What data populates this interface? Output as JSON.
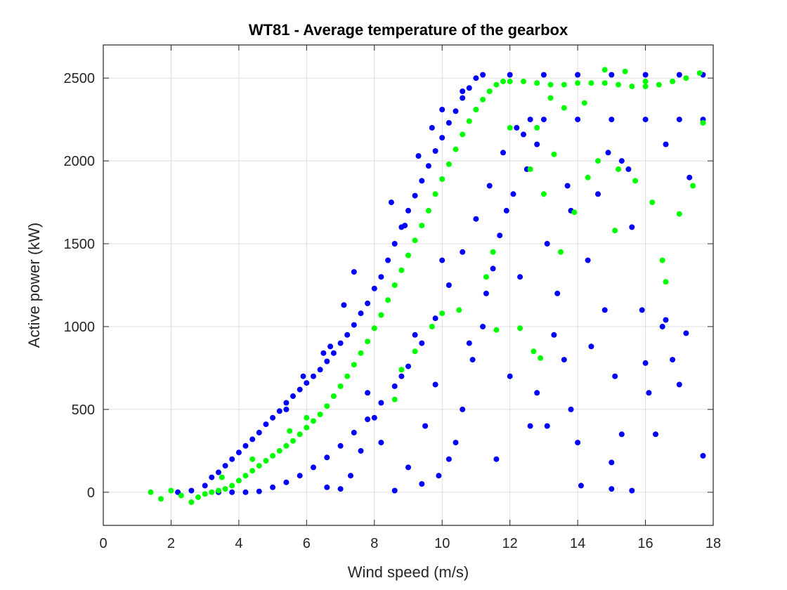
{
  "chart_data": {
    "type": "scatter",
    "title": "WT81 - Average temperature of the gearbox",
    "xlabel": "Wind speed (m/s)",
    "ylabel": "Active power (kW)",
    "xlim": [
      0,
      18
    ],
    "ylim": [
      -200,
      2700
    ],
    "xticks": [
      0,
      2,
      4,
      6,
      8,
      10,
      12,
      14,
      16,
      18
    ],
    "yticks": [
      0,
      500,
      1000,
      1500,
      2000,
      2500
    ],
    "xtick_labels": [
      "0",
      "2",
      "4",
      "6",
      "8",
      "10",
      "12",
      "14",
      "16",
      "18"
    ],
    "ytick_labels": [
      "0",
      "500",
      "1000",
      "1500",
      "2000",
      "2500"
    ],
    "grid": true,
    "series": [
      {
        "color": "#0000ff",
        "points": [
          [
            2.2,
            0
          ],
          [
            2.6,
            10
          ],
          [
            3.0,
            40
          ],
          [
            3.2,
            90
          ],
          [
            3.4,
            120
          ],
          [
            3.6,
            160
          ],
          [
            3.8,
            200
          ],
          [
            4.0,
            240
          ],
          [
            4.2,
            280
          ],
          [
            4.4,
            320
          ],
          [
            4.6,
            360
          ],
          [
            4.8,
            410
          ],
          [
            5.0,
            450
          ],
          [
            5.2,
            490
          ],
          [
            5.4,
            540
          ],
          [
            5.6,
            580
          ],
          [
            5.8,
            620
          ],
          [
            6.0,
            660
          ],
          [
            6.2,
            700
          ],
          [
            6.4,
            740
          ],
          [
            6.6,
            790
          ],
          [
            6.8,
            840
          ],
          [
            7.0,
            900
          ],
          [
            7.2,
            950
          ],
          [
            7.4,
            1010
          ],
          [
            7.6,
            1080
          ],
          [
            7.8,
            1140
          ],
          [
            8.0,
            1230
          ],
          [
            8.2,
            1300
          ],
          [
            8.4,
            1400
          ],
          [
            8.6,
            1500
          ],
          [
            8.8,
            1600
          ],
          [
            9.0,
            1700
          ],
          [
            9.2,
            1790
          ],
          [
            9.4,
            1880
          ],
          [
            9.6,
            1970
          ],
          [
            9.8,
            2060
          ],
          [
            10.0,
            2140
          ],
          [
            10.2,
            2230
          ],
          [
            10.4,
            2300
          ],
          [
            10.6,
            2380
          ],
          [
            10.8,
            2440
          ],
          [
            11.0,
            2500
          ],
          [
            11.2,
            2520
          ],
          [
            3.4,
            0
          ],
          [
            3.8,
            0
          ],
          [
            4.2,
            0
          ],
          [
            4.6,
            5
          ],
          [
            5.0,
            30
          ],
          [
            5.4,
            60
          ],
          [
            5.8,
            100
          ],
          [
            6.2,
            150
          ],
          [
            6.6,
            210
          ],
          [
            7.0,
            280
          ],
          [
            7.4,
            360
          ],
          [
            7.8,
            440
          ],
          [
            8.2,
            540
          ],
          [
            8.6,
            640
          ],
          [
            9.0,
            760
          ],
          [
            9.4,
            900
          ],
          [
            9.8,
            1050
          ],
          [
            10.2,
            1250
          ],
          [
            10.6,
            1450
          ],
          [
            11.0,
            1650
          ],
          [
            11.4,
            1850
          ],
          [
            11.8,
            2050
          ],
          [
            12.2,
            2200
          ],
          [
            12.6,
            2250
          ],
          [
            13.0,
            2250
          ],
          [
            14.0,
            2250
          ],
          [
            15.0,
            2250
          ],
          [
            16.0,
            2250
          ],
          [
            17.0,
            2250
          ],
          [
            17.7,
            2250
          ],
          [
            12.0,
            2520
          ],
          [
            13.0,
            2520
          ],
          [
            14.0,
            2520
          ],
          [
            15.0,
            2520
          ],
          [
            16.0,
            2520
          ],
          [
            17.0,
            2520
          ],
          [
            17.7,
            2520
          ],
          [
            8.5,
            1750
          ],
          [
            9.3,
            2030
          ],
          [
            9.7,
            2200
          ],
          [
            10.0,
            2310
          ],
          [
            7.4,
            1330
          ],
          [
            7.1,
            1130
          ],
          [
            6.7,
            880
          ],
          [
            5.4,
            500
          ],
          [
            5.9,
            700
          ],
          [
            6.5,
            840
          ],
          [
            8.9,
            1610
          ],
          [
            10.6,
            2420
          ],
          [
            9.8,
            650
          ],
          [
            9.5,
            400
          ],
          [
            10.2,
            200
          ],
          [
            10.6,
            500
          ],
          [
            10.9,
            800
          ],
          [
            11.2,
            1000
          ],
          [
            11.5,
            1350
          ],
          [
            11.7,
            1550
          ],
          [
            12.1,
            1800
          ],
          [
            12.5,
            1950
          ],
          [
            12.8,
            2100
          ],
          [
            13.1,
            1500
          ],
          [
            13.4,
            1200
          ],
          [
            13.6,
            800
          ],
          [
            13.8,
            500
          ],
          [
            14.0,
            300
          ],
          [
            14.3,
            1400
          ],
          [
            14.6,
            1800
          ],
          [
            14.8,
            1100
          ],
          [
            15.1,
            700
          ],
          [
            15.3,
            350
          ],
          [
            15.6,
            1600
          ],
          [
            15.9,
            1100
          ],
          [
            16.1,
            600
          ],
          [
            16.3,
            350
          ],
          [
            16.5,
            1000
          ],
          [
            16.8,
            800
          ],
          [
            17.0,
            650
          ],
          [
            17.3,
            1900
          ],
          [
            17.7,
            220
          ],
          [
            14.1,
            40
          ],
          [
            15.0,
            20
          ],
          [
            15.6,
            10
          ],
          [
            13.1,
            400
          ],
          [
            12.3,
            1300
          ],
          [
            11.6,
            200
          ],
          [
            11.3,
            1200
          ],
          [
            10.8,
            900
          ],
          [
            10.4,
            300
          ],
          [
            9.9,
            100
          ],
          [
            9.4,
            50
          ],
          [
            9.0,
            150
          ],
          [
            8.6,
            10
          ],
          [
            8.2,
            300
          ],
          [
            7.8,
            600
          ],
          [
            7.3,
            100
          ],
          [
            7.0,
            20
          ],
          [
            6.6,
            30
          ],
          [
            7.6,
            250
          ],
          [
            8.0,
            450
          ],
          [
            8.8,
            700
          ],
          [
            9.2,
            950
          ],
          [
            10.0,
            1400
          ],
          [
            12.0,
            700
          ],
          [
            12.6,
            400
          ],
          [
            13.3,
            950
          ],
          [
            13.8,
            1700
          ],
          [
            14.4,
            880
          ],
          [
            15.0,
            180
          ],
          [
            16.0,
            780
          ],
          [
            16.6,
            1040
          ],
          [
            17.2,
            960
          ],
          [
            12.8,
            600
          ],
          [
            11.9,
            1700
          ],
          [
            14.9,
            2050
          ],
          [
            15.5,
            1950
          ],
          [
            16.6,
            2100
          ],
          [
            15.3,
            2000
          ],
          [
            13.7,
            1850
          ],
          [
            12.4,
            2160
          ]
        ]
      },
      {
        "color": "#00ff00",
        "points": [
          [
            1.4,
            0
          ],
          [
            1.7,
            -40
          ],
          [
            2.0,
            10
          ],
          [
            2.3,
            -20
          ],
          [
            2.6,
            -60
          ],
          [
            2.8,
            -30
          ],
          [
            3.0,
            -10
          ],
          [
            3.2,
            0
          ],
          [
            3.4,
            10
          ],
          [
            3.6,
            20
          ],
          [
            3.8,
            40
          ],
          [
            4.0,
            70
          ],
          [
            4.2,
            100
          ],
          [
            4.4,
            130
          ],
          [
            4.6,
            160
          ],
          [
            4.8,
            190
          ],
          [
            5.0,
            220
          ],
          [
            5.2,
            250
          ],
          [
            5.4,
            280
          ],
          [
            5.6,
            310
          ],
          [
            5.8,
            350
          ],
          [
            6.0,
            390
          ],
          [
            6.2,
            430
          ],
          [
            6.4,
            470
          ],
          [
            6.6,
            520
          ],
          [
            6.8,
            580
          ],
          [
            7.0,
            640
          ],
          [
            7.2,
            700
          ],
          [
            7.4,
            770
          ],
          [
            7.6,
            840
          ],
          [
            7.8,
            910
          ],
          [
            8.0,
            990
          ],
          [
            8.2,
            1070
          ],
          [
            8.4,
            1160
          ],
          [
            8.6,
            1250
          ],
          [
            8.8,
            1340
          ],
          [
            9.0,
            1430
          ],
          [
            9.2,
            1520
          ],
          [
            9.4,
            1610
          ],
          [
            9.6,
            1700
          ],
          [
            9.8,
            1800
          ],
          [
            10.0,
            1890
          ],
          [
            10.2,
            1980
          ],
          [
            10.4,
            2070
          ],
          [
            10.6,
            2160
          ],
          [
            10.8,
            2240
          ],
          [
            11.0,
            2310
          ],
          [
            11.2,
            2370
          ],
          [
            11.4,
            2420
          ],
          [
            11.6,
            2460
          ],
          [
            11.8,
            2480
          ],
          [
            12.0,
            2480
          ],
          [
            12.4,
            2480
          ],
          [
            12.8,
            2470
          ],
          [
            13.2,
            2460
          ],
          [
            13.6,
            2460
          ],
          [
            14.0,
            2470
          ],
          [
            14.4,
            2470
          ],
          [
            14.8,
            2470
          ],
          [
            15.2,
            2460
          ],
          [
            15.6,
            2450
          ],
          [
            16.0,
            2450
          ],
          [
            16.4,
            2460
          ],
          [
            16.8,
            2480
          ],
          [
            17.2,
            2500
          ],
          [
            17.6,
            2530
          ],
          [
            14.8,
            2550
          ],
          [
            15.4,
            2540
          ],
          [
            16.0,
            2480
          ],
          [
            13.2,
            2380
          ],
          [
            13.6,
            2320
          ],
          [
            14.2,
            2350
          ],
          [
            12.8,
            2200
          ],
          [
            13.0,
            1800
          ],
          [
            12.6,
            1950
          ],
          [
            13.3,
            2040
          ],
          [
            14.3,
            1900
          ],
          [
            14.6,
            2000
          ],
          [
            15.2,
            1950
          ],
          [
            15.7,
            1880
          ],
          [
            16.2,
            1750
          ],
          [
            16.5,
            1400
          ],
          [
            16.6,
            1270
          ],
          [
            17.0,
            1680
          ],
          [
            17.4,
            1850
          ],
          [
            17.7,
            2230
          ],
          [
            12.0,
            2200
          ],
          [
            11.5,
            1450
          ],
          [
            11.3,
            1300
          ],
          [
            10.5,
            1100
          ],
          [
            10.0,
            1080
          ],
          [
            9.7,
            1000
          ],
          [
            12.7,
            850
          ],
          [
            12.9,
            810
          ],
          [
            12.3,
            990
          ],
          [
            11.6,
            980
          ],
          [
            13.5,
            1450
          ],
          [
            13.9,
            1690
          ],
          [
            15.1,
            1580
          ],
          [
            8.6,
            560
          ],
          [
            8.8,
            740
          ],
          [
            9.2,
            850
          ],
          [
            6.0,
            450
          ],
          [
            5.5,
            370
          ],
          [
            4.4,
            200
          ],
          [
            3.5,
            90
          ]
        ]
      }
    ]
  }
}
